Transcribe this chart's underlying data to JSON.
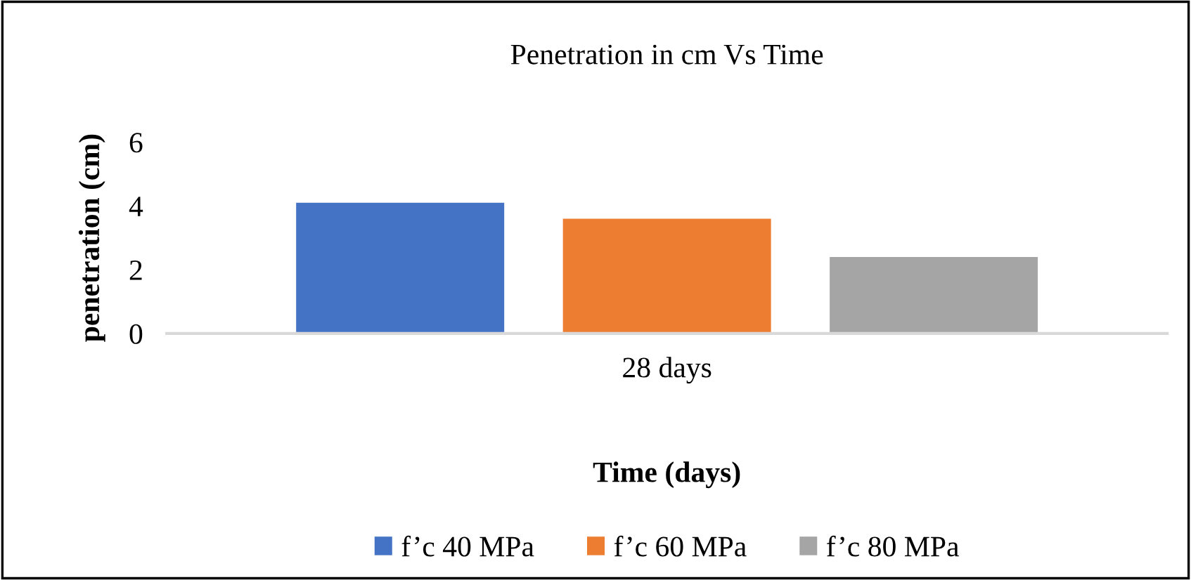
{
  "chart_data": {
    "type": "bar",
    "title": "Penetration in cm Vs Time",
    "xlabel": "Time (days)",
    "ylabel": "penetration (cm)",
    "categories": [
      "28 days"
    ],
    "series": [
      {
        "name": "f’c 40 MPa",
        "color": "#4472c4",
        "values": [
          4.1
        ]
      },
      {
        "name": "f’c 60 MPa",
        "color": "#ed7d31",
        "values": [
          3.6
        ]
      },
      {
        "name": "f’c 80 MPa",
        "color": "#a5a5a5",
        "values": [
          2.4
        ]
      }
    ],
    "ylim": [
      0,
      6
    ],
    "yticks": [
      0,
      2,
      4,
      6
    ],
    "grid": false,
    "legend": "bottom"
  }
}
